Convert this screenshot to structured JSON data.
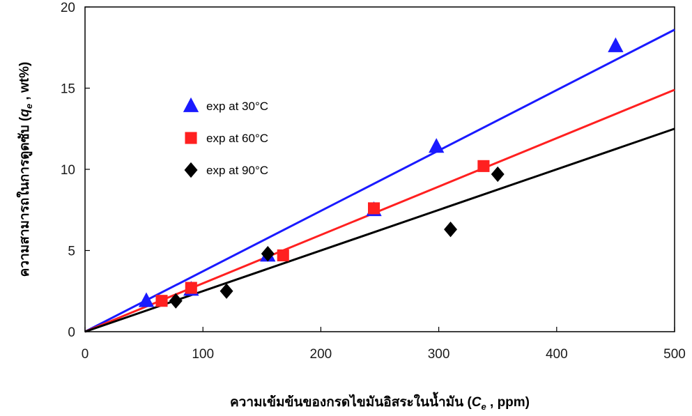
{
  "chart_data": {
    "type": "scatter",
    "xlim": [
      0,
      500
    ],
    "ylim": [
      0,
      20
    ],
    "x_ticks": [
      0,
      100,
      200,
      300,
      400,
      500
    ],
    "y_ticks": [
      0,
      5,
      10,
      15,
      20
    ],
    "xlabel": {
      "prefix": "ความเข้มข้นของกรดไขมันอิสระในน้ำมัน (",
      "symbol": "C",
      "subscript": "e",
      "suffix": " , ppm)"
    },
    "ylabel": {
      "prefix": "ความสามารถในการดูดซับ (",
      "symbol": "q",
      "subscript": "e",
      "suffix": " , wt%)"
    },
    "grid": false,
    "legend_position": "upper-left",
    "series": [
      {
        "name": "exp at 30°C",
        "marker": "triangle",
        "color": "#1a1aff",
        "points": [
          [
            52,
            1.9
          ],
          [
            90,
            2.6
          ],
          [
            155,
            4.7
          ],
          [
            245,
            7.5
          ],
          [
            298,
            11.4
          ],
          [
            450,
            17.6
          ]
        ],
        "fit_line": {
          "x": [
            0,
            500
          ],
          "y": [
            0,
            18.6
          ]
        }
      },
      {
        "name": "exp at 60°C",
        "marker": "square",
        "color": "#ff2020",
        "points": [
          [
            65,
            1.9
          ],
          [
            90,
            2.7
          ],
          [
            168,
            4.7
          ],
          [
            245,
            7.6
          ],
          [
            338,
            10.2
          ]
        ],
        "fit_line": {
          "x": [
            0,
            500
          ],
          "y": [
            0,
            14.9
          ]
        }
      },
      {
        "name": "exp at 90°C",
        "marker": "diamond",
        "color": "#000000",
        "points": [
          [
            77,
            1.9
          ],
          [
            120,
            2.5
          ],
          [
            155,
            4.8
          ],
          [
            310,
            6.3
          ],
          [
            350,
            9.7
          ]
        ],
        "fit_line": {
          "x": [
            0,
            500
          ],
          "y": [
            0,
            12.5
          ]
        }
      }
    ]
  }
}
